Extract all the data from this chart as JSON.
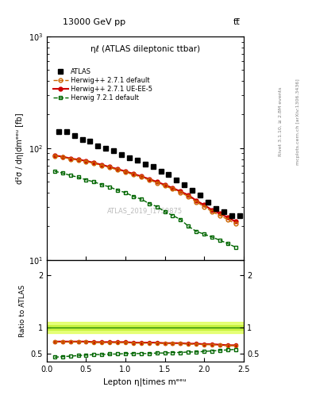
{
  "title_top": "13000 GeV pp",
  "title_top_right": "tt̅",
  "annotation": "ηℓ (ATLAS dileptonic ttbar)",
  "watermark": "ATLAS_2019_I1759875",
  "right_label_top": "Rivet 3.1.10, ≥ 2.8M events",
  "right_label_bottom": "mcplots.cern.ch [arXiv:1306.3436]",
  "ylabel_main": "d²σ / dη|dmᵉᵉᵘ [fb]",
  "ylabel_ratio": "Ratio to ATLAS",
  "xlabel": "Lepton η|times mᵉᵉᵘ",
  "ylim_main": [
    10,
    1000
  ],
  "ylim_ratio": [
    0.35,
    2.3
  ],
  "xlim": [
    0,
    2.5
  ],
  "atlas_x": [
    0.15,
    0.25,
    0.35,
    0.45,
    0.55,
    0.65,
    0.75,
    0.85,
    0.95,
    1.05,
    1.15,
    1.25,
    1.35,
    1.45,
    1.55,
    1.65,
    1.75,
    1.85,
    1.95,
    2.05,
    2.15,
    2.25,
    2.35,
    2.45
  ],
  "atlas_y": [
    140,
    140,
    130,
    120,
    115,
    105,
    100,
    95,
    87,
    82,
    78,
    72,
    68,
    62,
    58,
    52,
    47,
    42,
    38,
    33,
    29,
    27,
    25,
    25
  ],
  "hw271_x": [
    0.1,
    0.2,
    0.3,
    0.4,
    0.5,
    0.6,
    0.7,
    0.8,
    0.9,
    1.0,
    1.1,
    1.2,
    1.3,
    1.4,
    1.5,
    1.6,
    1.7,
    1.8,
    1.9,
    2.0,
    2.1,
    2.2,
    2.3,
    2.4
  ],
  "hw271_y": [
    85,
    83,
    80,
    78,
    76,
    73,
    70,
    67,
    64,
    61,
    58,
    55,
    52,
    49,
    46,
    43,
    40,
    37,
    33,
    30,
    27,
    25,
    23,
    21
  ],
  "hw271ue_x": [
    0.1,
    0.2,
    0.3,
    0.4,
    0.5,
    0.6,
    0.7,
    0.8,
    0.9,
    1.0,
    1.1,
    1.2,
    1.3,
    1.4,
    1.5,
    1.6,
    1.7,
    1.8,
    1.9,
    2.0,
    2.1,
    2.2,
    2.3,
    2.4
  ],
  "hw271ue_y": [
    86,
    84,
    81,
    79,
    77,
    74,
    71,
    68,
    65,
    62,
    59,
    56,
    53,
    50,
    47,
    44,
    41,
    38,
    34,
    31,
    28,
    26,
    24,
    22
  ],
  "hw721_x": [
    0.1,
    0.2,
    0.3,
    0.4,
    0.5,
    0.6,
    0.7,
    0.8,
    0.9,
    1.0,
    1.1,
    1.2,
    1.3,
    1.4,
    1.5,
    1.6,
    1.7,
    1.8,
    1.9,
    2.0,
    2.1,
    2.2,
    2.3,
    2.4
  ],
  "hw721_y": [
    62,
    60,
    57,
    55,
    52,
    50,
    47,
    45,
    42,
    40,
    37,
    35,
    32,
    30,
    27,
    25,
    23,
    20,
    18,
    17,
    16,
    15,
    14,
    13
  ],
  "ratio_hw271_x": [
    0.1,
    0.2,
    0.3,
    0.4,
    0.5,
    0.6,
    0.7,
    0.8,
    0.9,
    1.0,
    1.1,
    1.2,
    1.3,
    1.4,
    1.5,
    1.6,
    1.7,
    1.8,
    1.9,
    2.0,
    2.1,
    2.2,
    2.3,
    2.4
  ],
  "ratio_hw271_y": [
    0.72,
    0.72,
    0.72,
    0.72,
    0.72,
    0.71,
    0.71,
    0.71,
    0.71,
    0.71,
    0.7,
    0.7,
    0.7,
    0.7,
    0.69,
    0.69,
    0.69,
    0.68,
    0.68,
    0.67,
    0.67,
    0.66,
    0.65,
    0.65
  ],
  "ratio_hw271ue_x": [
    0.1,
    0.2,
    0.3,
    0.4,
    0.5,
    0.6,
    0.7,
    0.8,
    0.9,
    1.0,
    1.1,
    1.2,
    1.3,
    1.4,
    1.5,
    1.6,
    1.7,
    1.8,
    1.9,
    2.0,
    2.1,
    2.2,
    2.3,
    2.4
  ],
  "ratio_hw271ue_y": [
    0.73,
    0.73,
    0.73,
    0.73,
    0.73,
    0.72,
    0.72,
    0.72,
    0.72,
    0.72,
    0.71,
    0.71,
    0.71,
    0.71,
    0.7,
    0.7,
    0.7,
    0.69,
    0.69,
    0.68,
    0.68,
    0.67,
    0.66,
    0.66
  ],
  "ratio_hw721_x": [
    0.1,
    0.2,
    0.3,
    0.4,
    0.5,
    0.6,
    0.7,
    0.8,
    0.9,
    1.0,
    1.1,
    1.2,
    1.3,
    1.4,
    1.5,
    1.6,
    1.7,
    1.8,
    1.9,
    2.0,
    2.1,
    2.2,
    2.3,
    2.4
  ],
  "ratio_hw721_y": [
    0.43,
    0.44,
    0.45,
    0.46,
    0.47,
    0.48,
    0.48,
    0.49,
    0.49,
    0.5,
    0.5,
    0.5,
    0.5,
    0.51,
    0.51,
    0.52,
    0.52,
    0.53,
    0.53,
    0.54,
    0.55,
    0.56,
    0.57,
    0.58
  ],
  "color_atlas": "#000000",
  "color_hw271": "#cc6600",
  "color_hw271ue": "#cc0000",
  "color_hw721": "#006600",
  "legend_entries": [
    "ATLAS",
    "Herwig++ 2.7.1 default",
    "Herwig++ 2.7.1 UE-EE-5",
    "Herwig 7.2.1 default"
  ]
}
